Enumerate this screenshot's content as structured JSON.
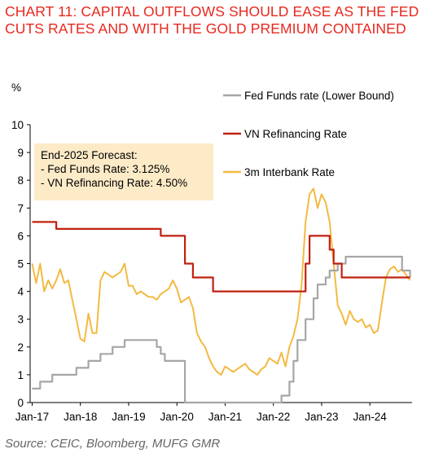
{
  "title": "CHART 11: CAPITAL OUTFLOWS SHOULD EASE AS THE FED CUTS RATES AND WITH THE GOLD PREMIUM CONTAINED",
  "source": "Source: CEIC, Bloomberg, MUFG GMR",
  "forecast_box": {
    "heading": "End-2025 Forecast:",
    "line1": "- Fed Funds Rate: 3.125%",
    "line2": "- VN Refinancing Rate: 4.50%"
  },
  "colors": {
    "title": "#e8281e",
    "fed": "#a6a6a6",
    "refi": "#c0210f",
    "interbank": "#f4b942",
    "box": "#fdebc8"
  },
  "chart_data": {
    "type": "line",
    "ylabel": "%",
    "ylim": [
      0,
      10
    ],
    "y_ticks": [
      "0",
      "1",
      "2",
      "3",
      "4",
      "5",
      "6",
      "7",
      "8",
      "9",
      "10"
    ],
    "x_ticks": [
      "Jan-17",
      "Jan-18",
      "Jan-19",
      "Jan-20",
      "Jan-21",
      "Jan-22",
      "Jan-23",
      "Jan-24"
    ],
    "xlim": [
      "2017-01",
      "2024-11"
    ],
    "grid": false,
    "legend_position": "top-right",
    "series": [
      {
        "name": "Fed Funds rate (Lower Bound)",
        "step": true,
        "points": [
          [
            "2017-01",
            0.5
          ],
          [
            "2017-03",
            0.75
          ],
          [
            "2017-06",
            1.0
          ],
          [
            "2017-12",
            1.25
          ],
          [
            "2018-03",
            1.5
          ],
          [
            "2018-06",
            1.75
          ],
          [
            "2018-09",
            2.0
          ],
          [
            "2018-12",
            2.25
          ],
          [
            "2019-08",
            2.0
          ],
          [
            "2019-09",
            1.75
          ],
          [
            "2019-10",
            1.5
          ],
          [
            "2020-03",
            0.0
          ],
          [
            "2022-03",
            0.25
          ],
          [
            "2022-05",
            0.75
          ],
          [
            "2022-06",
            1.5
          ],
          [
            "2022-07",
            2.25
          ],
          [
            "2022-09",
            3.0
          ],
          [
            "2022-11",
            3.75
          ],
          [
            "2022-12",
            4.25
          ],
          [
            "2023-02",
            4.5
          ],
          [
            "2023-03",
            4.75
          ],
          [
            "2023-05",
            5.0
          ],
          [
            "2023-07",
            5.25
          ],
          [
            "2024-09",
            4.75
          ],
          [
            "2024-11",
            4.5
          ]
        ]
      },
      {
        "name": "VN Refinancing Rate",
        "step": true,
        "points": [
          [
            "2017-01",
            6.5
          ],
          [
            "2017-07",
            6.25
          ],
          [
            "2019-09",
            6.0
          ],
          [
            "2020-03",
            5.0
          ],
          [
            "2020-05",
            4.5
          ],
          [
            "2020-10",
            4.0
          ],
          [
            "2022-09",
            5.0
          ],
          [
            "2022-10",
            6.0
          ],
          [
            "2023-03",
            5.5
          ],
          [
            "2023-04",
            5.0
          ],
          [
            "2023-06",
            4.5
          ],
          [
            "2024-11",
            4.5
          ]
        ]
      },
      {
        "name": "3m Interbank Rate",
        "step": false,
        "points": [
          [
            "2017-01",
            5.0
          ],
          [
            "2017-02",
            4.3
          ],
          [
            "2017-03",
            5.0
          ],
          [
            "2017-04",
            4.0
          ],
          [
            "2017-05",
            4.4
          ],
          [
            "2017-06",
            4.1
          ],
          [
            "2017-07",
            4.4
          ],
          [
            "2017-08",
            4.8
          ],
          [
            "2017-09",
            4.3
          ],
          [
            "2017-10",
            4.4
          ],
          [
            "2017-11",
            3.7
          ],
          [
            "2017-12",
            3.0
          ],
          [
            "2018-01",
            2.3
          ],
          [
            "2018-02",
            2.2
          ],
          [
            "2018-03",
            3.2
          ],
          [
            "2018-04",
            2.5
          ],
          [
            "2018-05",
            2.5
          ],
          [
            "2018-06",
            4.4
          ],
          [
            "2018-07",
            4.7
          ],
          [
            "2018-08",
            4.6
          ],
          [
            "2018-09",
            4.5
          ],
          [
            "2018-10",
            4.6
          ],
          [
            "2018-11",
            4.7
          ],
          [
            "2018-12",
            5.0
          ],
          [
            "2019-01",
            4.2
          ],
          [
            "2019-02",
            4.2
          ],
          [
            "2019-03",
            3.9
          ],
          [
            "2019-04",
            4.0
          ],
          [
            "2019-05",
            3.9
          ],
          [
            "2019-06",
            3.8
          ],
          [
            "2019-07",
            3.8
          ],
          [
            "2019-08",
            3.7
          ],
          [
            "2019-09",
            3.9
          ],
          [
            "2019-10",
            4.0
          ],
          [
            "2019-11",
            4.1
          ],
          [
            "2019-12",
            4.4
          ],
          [
            "2020-01",
            4.1
          ],
          [
            "2020-02",
            3.6
          ],
          [
            "2020-03",
            3.7
          ],
          [
            "2020-04",
            3.8
          ],
          [
            "2020-05",
            3.4
          ],
          [
            "2020-06",
            2.5
          ],
          [
            "2020-07",
            2.2
          ],
          [
            "2020-08",
            2.0
          ],
          [
            "2020-09",
            1.6
          ],
          [
            "2020-10",
            1.3
          ],
          [
            "2020-11",
            1.1
          ],
          [
            "2020-12",
            1.0
          ],
          [
            "2021-01",
            1.3
          ],
          [
            "2021-02",
            1.2
          ],
          [
            "2021-03",
            1.1
          ],
          [
            "2021-04",
            1.2
          ],
          [
            "2021-05",
            1.3
          ],
          [
            "2021-06",
            1.4
          ],
          [
            "2021-07",
            1.2
          ],
          [
            "2021-08",
            1.1
          ],
          [
            "2021-09",
            1.0
          ],
          [
            "2021-10",
            1.2
          ],
          [
            "2021-11",
            1.3
          ],
          [
            "2021-12",
            1.6
          ],
          [
            "2022-01",
            1.5
          ],
          [
            "2022-02",
            1.4
          ],
          [
            "2022-03",
            1.8
          ],
          [
            "2022-04",
            1.3
          ],
          [
            "2022-05",
            2.0
          ],
          [
            "2022-06",
            2.4
          ],
          [
            "2022-07",
            3.0
          ],
          [
            "2022-08",
            4.2
          ],
          [
            "2022-09",
            6.5
          ],
          [
            "2022-10",
            7.5
          ],
          [
            "2022-11",
            7.7
          ],
          [
            "2022-12",
            7.0
          ],
          [
            "2023-01",
            7.5
          ],
          [
            "2023-02",
            7.2
          ],
          [
            "2023-03",
            6.5
          ],
          [
            "2023-04",
            5.0
          ],
          [
            "2023-05",
            3.5
          ],
          [
            "2023-06",
            3.2
          ],
          [
            "2023-07",
            2.8
          ],
          [
            "2023-08",
            3.3
          ],
          [
            "2023-09",
            3.0
          ],
          [
            "2023-10",
            2.9
          ],
          [
            "2023-11",
            3.0
          ],
          [
            "2023-12",
            2.7
          ],
          [
            "2024-01",
            2.8
          ],
          [
            "2024-02",
            2.5
          ],
          [
            "2024-03",
            2.6
          ],
          [
            "2024-04",
            3.6
          ],
          [
            "2024-05",
            4.5
          ],
          [
            "2024-06",
            4.8
          ],
          [
            "2024-07",
            4.9
          ],
          [
            "2024-08",
            4.7
          ],
          [
            "2024-09",
            4.8
          ],
          [
            "2024-10",
            4.6
          ],
          [
            "2024-11",
            4.4
          ]
        ]
      }
    ]
  }
}
